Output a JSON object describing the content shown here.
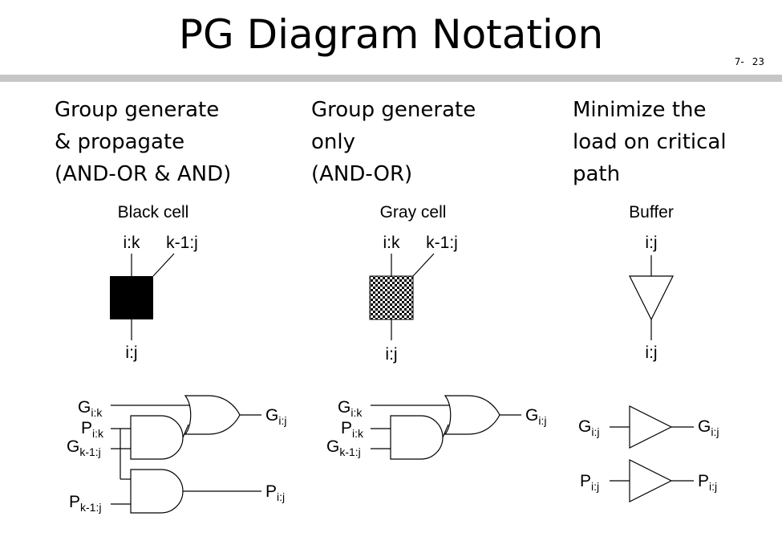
{
  "title": "PG Diagram Notation",
  "page_number": {
    "chapter": "7-",
    "page": "23"
  },
  "columns": [
    {
      "heading_lines": [
        "Group generate",
        "& propagate",
        "(AND-OR & AND)"
      ]
    },
    {
      "heading_lines": [
        "Group generate",
        "only",
        "(AND-OR)"
      ]
    },
    {
      "heading_lines": [
        "Minimize the",
        "load on critical",
        "path"
      ]
    }
  ],
  "cells": {
    "black": {
      "label": "Black cell",
      "in_left": "i:k",
      "in_right": "k-1:j",
      "out": "i:j",
      "fill": "#000000"
    },
    "gray": {
      "label": "Gray cell",
      "in_left": "i:k",
      "in_right": "k-1:j",
      "out": "i:j",
      "pattern": "checkerboard"
    },
    "buffer": {
      "label": "Buffer",
      "in": "i:j",
      "out": "i:j"
    }
  },
  "circuits": {
    "black": {
      "g_ik": {
        "base": "G",
        "sub": "i:k"
      },
      "p_ik": {
        "base": "P",
        "sub": "i:k"
      },
      "g_k1j": {
        "base": "G",
        "sub": "k-1:j"
      },
      "p_k1j": {
        "base": "P",
        "sub": "k-1:j"
      },
      "g_out": {
        "base": "G",
        "sub": "i:j"
      },
      "p_out": {
        "base": "P",
        "sub": "i:j"
      }
    },
    "gray": {
      "g_ik": {
        "base": "G",
        "sub": "i:k"
      },
      "p_ik": {
        "base": "P",
        "sub": "i:k"
      },
      "g_k1j": {
        "base": "G",
        "sub": "k-1:j"
      },
      "g_out": {
        "base": "G",
        "sub": "i:j"
      }
    },
    "buffer": {
      "g_in": {
        "base": "G",
        "sub": "i:j"
      },
      "g_out": {
        "base": "G",
        "sub": "i:j"
      },
      "p_in": {
        "base": "P",
        "sub": "i:j"
      },
      "p_out": {
        "base": "P",
        "sub": "i:j"
      }
    }
  }
}
